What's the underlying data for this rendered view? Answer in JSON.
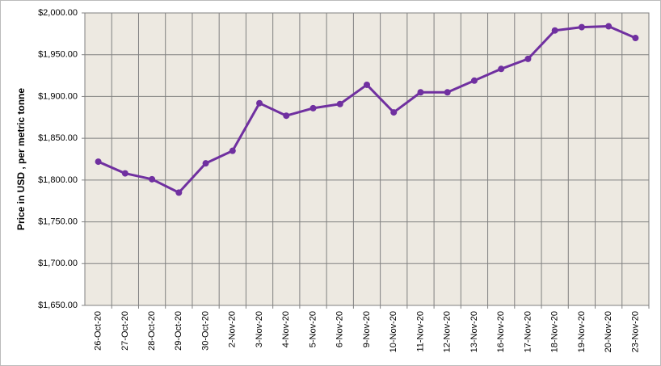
{
  "chart_data": {
    "type": "line",
    "y_label": "Price in USD , per metric tonne",
    "categories": [
      "26-Oct-20",
      "27-Oct-20",
      "28-Oct-20",
      "29-Oct-20",
      "30-Oct-20",
      "2-Nov-20",
      "3-Nov-20",
      "4-Nov-20",
      "5-Nov-20",
      "6-Nov-20",
      "9-Nov-20",
      "10-Nov-20",
      "11-Nov-20",
      "12-Nov-20",
      "13-Nov-20",
      "16-Nov-20",
      "17-Nov-20",
      "18-Nov-20",
      "19-Nov-20",
      "20-Nov-20",
      "23-Nov-20"
    ],
    "values": [
      1822,
      1808,
      1801,
      1785,
      1820,
      1835,
      1892,
      1877,
      1886,
      1891,
      1914,
      1881,
      1905,
      1905,
      1919,
      1933,
      1945,
      1979,
      1983,
      1984,
      1970
    ],
    "color": "#7030a0",
    "ylim": [
      1650,
      2000
    ],
    "yticks": [
      {
        "value": 1650,
        "label": "$1,650.00"
      },
      {
        "value": 1700,
        "label": "$1,700.00"
      },
      {
        "value": 1750,
        "label": "$1,750.00"
      },
      {
        "value": 1800,
        "label": "$1,800.00"
      },
      {
        "value": 1850,
        "label": "$1,850.00"
      },
      {
        "value": 1900,
        "label": "$1,900.00"
      },
      {
        "value": 1950,
        "label": "$1,950.00"
      },
      {
        "value": 2000,
        "label": "$2,000.00"
      }
    ],
    "grid": true
  }
}
